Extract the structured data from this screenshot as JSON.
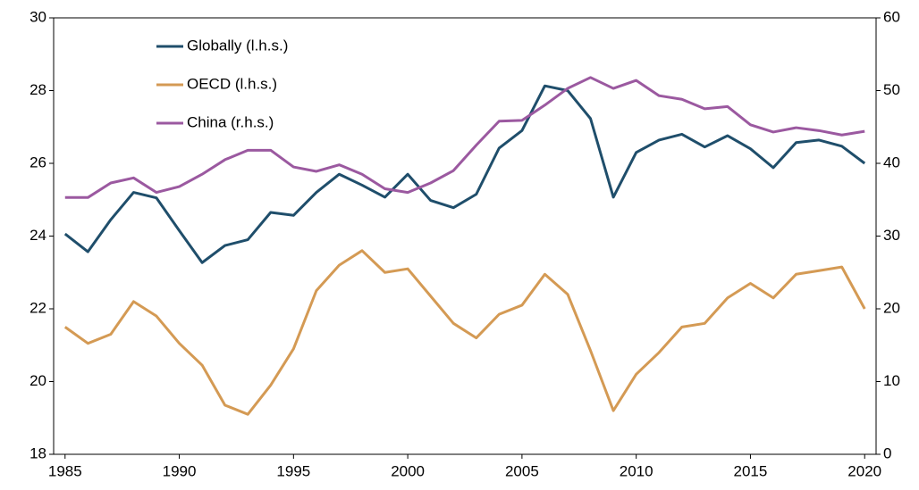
{
  "chart_data": {
    "type": "line",
    "x": [
      1985,
      1986,
      1987,
      1988,
      1989,
      1990,
      1991,
      1992,
      1993,
      1994,
      1995,
      1996,
      1997,
      1998,
      1999,
      2000,
      2001,
      2002,
      2003,
      2004,
      2005,
      2006,
      2007,
      2008,
      2009,
      2010,
      2011,
      2012,
      2013,
      2014,
      2015,
      2016,
      2017,
      2018,
      2019,
      2020
    ],
    "xlim": [
      1984.5,
      2020.5
    ],
    "xticks": [
      1985,
      1990,
      1995,
      2000,
      2005,
      2010,
      2015,
      2020
    ],
    "ylim": [
      18,
      30
    ],
    "yticks": [
      18,
      20,
      22,
      24,
      26,
      28,
      30
    ],
    "y2lim": [
      0,
      60
    ],
    "y2ticks": [
      0,
      10,
      20,
      30,
      40,
      50,
      60
    ],
    "legend": "upper left",
    "series": [
      {
        "name": "Globally (l.h.s.)",
        "color": "#1f4e6b",
        "values": [
          24.06,
          23.57,
          24.45,
          25.2,
          25.05,
          24.15,
          23.27,
          23.74,
          23.9,
          24.65,
          24.57,
          25.2,
          25.7,
          25.4,
          25.07,
          25.7,
          24.98,
          24.78,
          25.15,
          26.42,
          26.9,
          28.13,
          28.0,
          27.23,
          25.07,
          26.3,
          26.64,
          26.8,
          26.45,
          26.76,
          26.4,
          25.88,
          26.57,
          26.64,
          26.47,
          26.0
        ]
      },
      {
        "name": "OECD (l.h.s.)",
        "color": "#d49a54",
        "values": [
          21.5,
          21.05,
          21.3,
          22.2,
          21.8,
          21.05,
          20.45,
          19.35,
          19.1,
          19.9,
          20.9,
          22.5,
          23.2,
          23.6,
          23.0,
          23.1,
          22.35,
          21.6,
          21.2,
          21.85,
          22.1,
          22.95,
          22.4,
          20.85,
          19.2,
          20.2,
          20.8,
          21.5,
          21.6,
          22.3,
          22.7,
          22.3,
          22.95,
          23.05,
          23.15,
          22.0
        ]
      },
      {
        "name": "China (r.h.s.)",
        "color": "#9b59a0",
        "axis": "y2",
        "values": [
          35.3,
          35.3,
          37.3,
          38,
          36,
          36.8,
          38.5,
          40.5,
          41.8,
          41.8,
          39.5,
          38.9,
          39.8,
          38.5,
          36.5,
          36,
          37.3,
          39,
          42.5,
          45.8,
          45.9,
          48,
          50.3,
          51.8,
          50.3,
          51.4,
          49.3,
          48.8,
          47.5,
          47.8,
          45.3,
          44.3,
          44.9,
          44.5,
          43.9,
          44.4
        ]
      }
    ]
  }
}
